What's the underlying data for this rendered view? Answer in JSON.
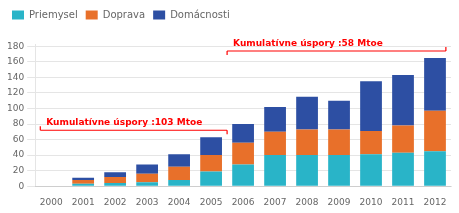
{
  "chart_data": {
    "type": "bar",
    "stacked": true,
    "categories": [
      "2000",
      "2001",
      "2002",
      "2003",
      "2004",
      "2005",
      "2006",
      "2007",
      "2008",
      "2009",
      "2010",
      "2011",
      "2012"
    ],
    "series": [
      {
        "name": "Priemysel",
        "color": "#29b4c8",
        "values": [
          0,
          3,
          4,
          5,
          8,
          19,
          28,
          40,
          40,
          40,
          41,
          43,
          45
        ]
      },
      {
        "name": "Doprava",
        "color": "#e8702a",
        "values": [
          0,
          5,
          8,
          11,
          17,
          21,
          28,
          30,
          33,
          33,
          30,
          35,
          52
        ]
      },
      {
        "name": "Domácnosti",
        "color": "#2d4fa3",
        "values": [
          0,
          3,
          6,
          12,
          16,
          23,
          24,
          32,
          42,
          37,
          64,
          65,
          68
        ]
      }
    ],
    "ylim": [
      0,
      183
    ],
    "yticks": [
      0,
      20,
      40,
      60,
      80,
      100,
      120,
      140,
      160,
      180
    ],
    "grid": true,
    "legend": "upper left",
    "annotations": [
      {
        "text": "Kumulatívne úspory :103 Mtoe",
        "from": "2000",
        "to": "2005",
        "color": "red"
      },
      {
        "text": "Kumulatívne úspory :58 Mtoe",
        "from": "2006",
        "to": "2012",
        "color": "red"
      }
    ]
  }
}
